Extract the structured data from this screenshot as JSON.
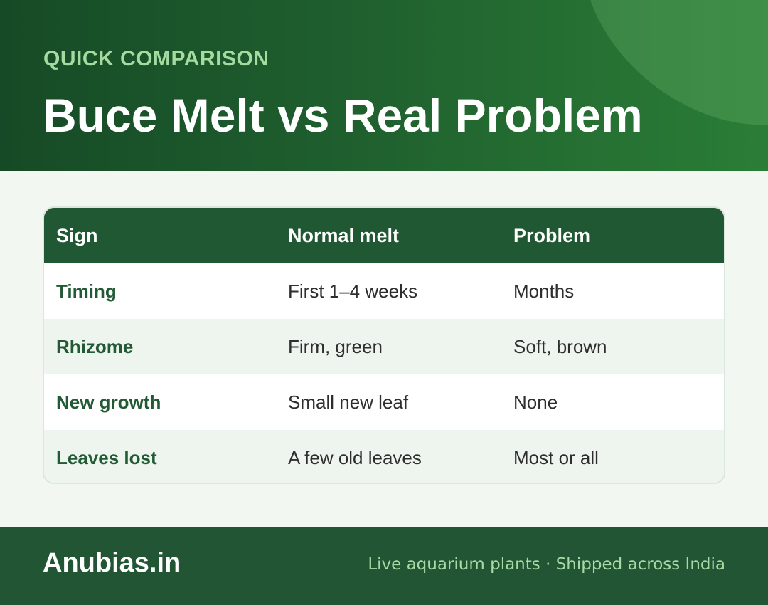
{
  "header": {
    "eyebrow": "QUICK COMPARISON",
    "title": "Buce Melt vs Real Problem"
  },
  "table": {
    "columns": [
      "Sign",
      "Normal melt",
      "Problem"
    ],
    "rows": [
      {
        "sign": "Timing",
        "normal": "First 1–4 weeks",
        "problem": "Months"
      },
      {
        "sign": "Rhizome",
        "normal": "Firm, green",
        "problem": "Soft, brown"
      },
      {
        "sign": "New growth",
        "normal": "Small new leaf",
        "problem": "None"
      },
      {
        "sign": "Leaves lost",
        "normal": "A few old leaves",
        "problem": "Most or all"
      }
    ]
  },
  "footer": {
    "brand": "Anubias.in",
    "tagline": "Live aquarium plants · Shipped across India"
  },
  "colors": {
    "header_dark": "#164a26",
    "header_light": "#2a7d36",
    "table_head": "#215834",
    "accent_text": "#225a35",
    "eyebrow": "#a5dba0",
    "footer": "#215534"
  }
}
